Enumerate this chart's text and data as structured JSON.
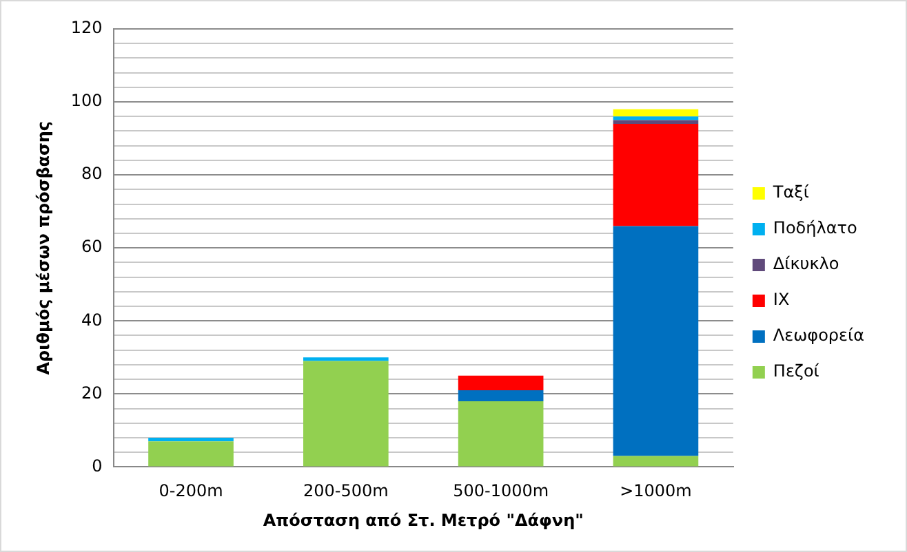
{
  "chart_data": {
    "type": "bar",
    "stacked": true,
    "xlabel": "Απόσταση από Στ. Μετρό \"Δάφνη\"",
    "ylabel": "Αριθμός μέσων πρόσβασης",
    "categories": [
      "0-200m",
      "200-500m",
      "500-1000m",
      ">1000m"
    ],
    "series": [
      {
        "name": "Πεζοί",
        "color": "#92d050",
        "values": [
          7,
          29,
          18,
          3
        ]
      },
      {
        "name": "Λεωφορεία",
        "color": "#0070c0",
        "values": [
          0,
          0,
          3,
          63
        ]
      },
      {
        "name": "ΙΧ",
        "color": "#ff0000",
        "values": [
          0,
          0,
          4,
          28
        ]
      },
      {
        "name": "Δίκυκλο",
        "color": "#604a7b",
        "values": [
          0,
          0,
          0,
          1
        ]
      },
      {
        "name": "Ποδήλατο",
        "color": "#00b0f0",
        "values": [
          1,
          1,
          0,
          1
        ]
      },
      {
        "name": "Ταξί",
        "color": "#ffff00",
        "values": [
          0,
          0,
          0,
          2
        ]
      }
    ],
    "ylim": [
      0,
      120
    ],
    "yticks": [
      0,
      {
        "value": 4,
        "label": null
      },
      {
        "value": 8,
        "label": null
      },
      {
        "value": 12,
        "label": null
      },
      {
        "value": 16,
        "label": null
      },
      20,
      {
        "value": 24,
        "label": null
      },
      {
        "value": 28,
        "label": null
      },
      {
        "value": 32,
        "label": null
      },
      {
        "value": 36,
        "label": null
      },
      40,
      {
        "value": 44,
        "label": null
      },
      {
        "value": 48,
        "label": null
      },
      {
        "value": 52,
        "label": null
      },
      {
        "value": 56,
        "label": null
      },
      60,
      {
        "value": 64,
        "label": null
      },
      {
        "value": 68,
        "label": null
      },
      {
        "value": 72,
        "label": null
      },
      {
        "value": 76,
        "label": null
      },
      80,
      {
        "value": 84,
        "label": null
      },
      {
        "value": 88,
        "label": null
      },
      {
        "value": 92,
        "label": null
      },
      {
        "value": 96,
        "label": null
      },
      100,
      {
        "value": 104,
        "label": null
      },
      {
        "value": 108,
        "label": null
      },
      {
        "value": 112,
        "label": null
      },
      {
        "value": 116,
        "label": null
      },
      120
    ],
    "grid": "y",
    "legend": "right"
  }
}
